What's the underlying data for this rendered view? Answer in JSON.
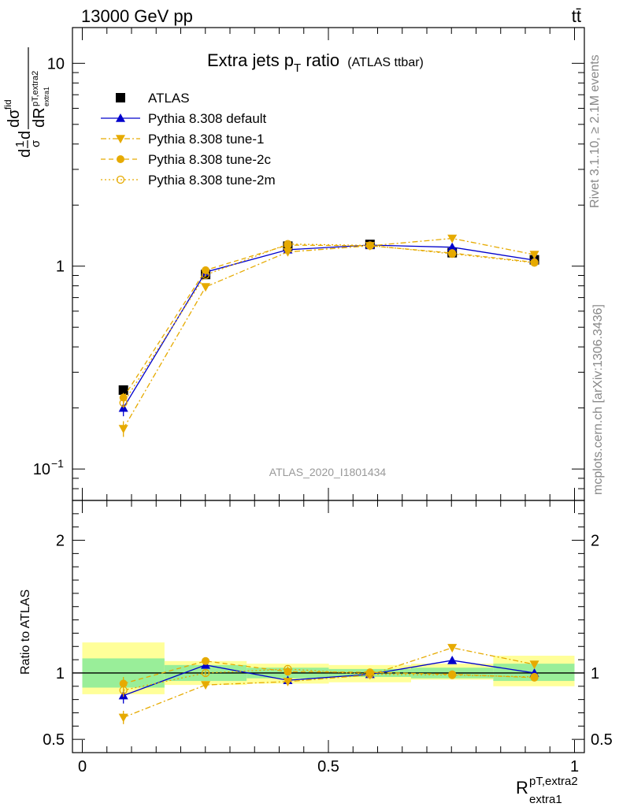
{
  "header": {
    "left_label": "13000 GeV pp",
    "right_label": "tt̄"
  },
  "side_labels": {
    "rivet": "Rivet 3.1.10, ≥ 2.1M events",
    "mcplots": "mcplots.cern.ch [arXiv:1306.3436]"
  },
  "analysis_id": "ATLAS_2020_I1801434",
  "chart_data": [
    {
      "type": "line",
      "panel": "main",
      "title": "Extra jets p",
      "title_sub": "T",
      "title_tail": " ratio",
      "title_small": "(ATLAS ttbar)",
      "ylabel": "1/σ dσ^fid / dR^{pT,extra2}_{extra1}",
      "yscale": "log",
      "ylim": [
        0.07,
        15
      ],
      "xlim": [
        -0.02,
        1.02
      ],
      "y_ticks": [
        {
          "value": 10,
          "label": "10"
        },
        {
          "value": 1,
          "label": "1"
        },
        {
          "value": 0.1,
          "label": "10",
          "sup": "−1"
        }
      ],
      "legend_position": "top-left",
      "x": [
        0.0835,
        0.2505,
        0.4175,
        0.5845,
        0.7515,
        0.9185
      ],
      "series": [
        {
          "name": "ATLAS",
          "color": "#000000",
          "marker": "square",
          "line": "none",
          "values": [
            0.245,
            0.91,
            1.255,
            1.28,
            1.165,
            1.075
          ],
          "errors": [
            0.006,
            0.01,
            0.012,
            0.012,
            0.012,
            0.01
          ]
        },
        {
          "name": "Pythia 8.308 default",
          "color": "#0000cc",
          "marker": "triangle-up",
          "line": "solid",
          "values": [
            0.2,
            0.935,
            1.205,
            1.27,
            1.24,
            1.07
          ],
          "errors": [
            0.018,
            0.02,
            0.02,
            0.02,
            0.025,
            0.02
          ]
        },
        {
          "name": "Pythia 8.308 tune-1",
          "color": "#e6aa00",
          "marker": "triangle-down",
          "line": "dashdot",
          "values": [
            0.158,
            0.79,
            1.175,
            1.26,
            1.37,
            1.14
          ],
          "errors": [
            0.014,
            0.018,
            0.02,
            0.02,
            0.025,
            0.02
          ]
        },
        {
          "name": "Pythia 8.308 tune-2c",
          "color": "#e6aa00",
          "marker": "circle",
          "line": "dashed",
          "values": [
            0.225,
            0.955,
            1.27,
            1.26,
            1.16,
            1.045
          ],
          "errors": [
            0.012,
            0.018,
            0.02,
            0.02,
            0.02,
            0.02
          ]
        },
        {
          "name": "Pythia 8.308 tune-2m",
          "color": "#e6aa00",
          "marker": "circle-open",
          "line": "dotted",
          "values": [
            0.212,
            0.905,
            1.285,
            1.265,
            1.15,
            1.04
          ],
          "errors": [
            0.012,
            0.018,
            0.02,
            0.02,
            0.02,
            0.02
          ]
        }
      ]
    },
    {
      "type": "line",
      "panel": "ratio",
      "ylabel": "Ratio to ATLAS",
      "xlabel": "R",
      "xlabel_sup": "pT,extra2",
      "xlabel_sub": "extra1",
      "ylim": [
        0.4,
        2.3
      ],
      "xlim": [
        -0.02,
        1.02
      ],
      "y_ticks": [
        {
          "value": 2,
          "label": "2"
        },
        {
          "value": 1,
          "label": "1"
        },
        {
          "value": 0.5,
          "label": "0.5"
        }
      ],
      "x_ticks": [
        {
          "value": 0,
          "label": "0"
        },
        {
          "value": 0.5,
          "label": "0.5"
        },
        {
          "value": 1,
          "label": "1"
        }
      ],
      "bin_edges": [
        0.0,
        0.167,
        0.334,
        0.501,
        0.668,
        0.835,
        1.0
      ],
      "uncertainty_bands": {
        "stat_color": "#99ee99",
        "total_color": "#ffff99",
        "stat": [
          [
            0.89,
            1.11
          ],
          [
            0.94,
            1.06
          ],
          [
            0.96,
            1.04
          ],
          [
            0.97,
            1.03
          ],
          [
            0.96,
            1.04
          ],
          [
            0.94,
            1.07
          ]
        ],
        "total": [
          [
            0.84,
            1.23
          ],
          [
            0.91,
            1.09
          ],
          [
            0.92,
            1.07
          ],
          [
            0.93,
            1.06
          ],
          [
            0.95,
            1.07
          ],
          [
            0.9,
            1.13
          ]
        ]
      },
      "x": [
        0.0835,
        0.2505,
        0.4175,
        0.5845,
        0.7515,
        0.9185
      ],
      "series": [
        {
          "name": "Pythia 8.308 default",
          "color": "#0000cc",
          "marker": "triangle-up",
          "line": "solid",
          "values": [
            0.83,
            1.06,
            0.945,
            0.99,
            1.095,
            1.0
          ],
          "errors": [
            0.06,
            0.02,
            0.02,
            0.02,
            0.025,
            0.02
          ]
        },
        {
          "name": "Pythia 8.308 tune-1",
          "color": "#e6aa00",
          "marker": "triangle-down",
          "line": "dashdot",
          "values": [
            0.665,
            0.91,
            0.935,
            0.985,
            1.19,
            1.065
          ],
          "errors": [
            0.05,
            0.02,
            0.02,
            0.02,
            0.025,
            0.02
          ]
        },
        {
          "name": "Pythia 8.308 tune-2c",
          "color": "#e6aa00",
          "marker": "circle",
          "line": "dashed",
          "values": [
            0.92,
            1.09,
            1.01,
            1.005,
            0.99,
            0.965
          ],
          "errors": [
            0.05,
            0.02,
            0.02,
            0.02,
            0.02,
            0.02
          ]
        },
        {
          "name": "Pythia 8.308 tune-2m",
          "color": "#e6aa00",
          "marker": "circle-open",
          "line": "dotted",
          "values": [
            0.87,
            1.0,
            1.03,
            0.99,
            0.985,
            0.97
          ],
          "errors": [
            0.05,
            0.02,
            0.02,
            0.02,
            0.02,
            0.02
          ]
        }
      ]
    }
  ]
}
